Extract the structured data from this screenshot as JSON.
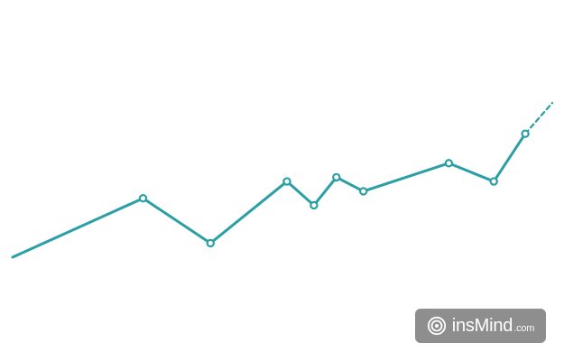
{
  "colors": {
    "background": "#ffffff",
    "line": "#2a9fa5",
    "marker_fill": "#ffffff",
    "badge_bg": "#8e8e8e",
    "badge_text": "#ffffff"
  },
  "chart_data": {
    "type": "line",
    "title": "",
    "xlabel": "",
    "ylabel": "",
    "grid": false,
    "legend": "none",
    "xlim": [
      0,
      12
    ],
    "ylim": [
      0,
      10
    ],
    "series": [
      {
        "style": "solid",
        "markers": true,
        "points": [
          {
            "x": 0.0,
            "y": 2.8,
            "marker": false
          },
          {
            "x": 2.9,
            "y": 4.9,
            "marker": true
          },
          {
            "x": 4.4,
            "y": 3.3,
            "marker": true
          },
          {
            "x": 6.1,
            "y": 5.5,
            "marker": true
          },
          {
            "x": 6.7,
            "y": 4.65,
            "marker": true
          },
          {
            "x": 7.2,
            "y": 5.65,
            "marker": true
          },
          {
            "x": 7.8,
            "y": 5.15,
            "marker": true
          },
          {
            "x": 9.7,
            "y": 6.15,
            "marker": true
          },
          {
            "x": 10.7,
            "y": 5.5,
            "marker": true
          },
          {
            "x": 11.4,
            "y": 7.2,
            "marker": true
          }
        ]
      },
      {
        "style": "dashed",
        "markers": false,
        "points": [
          {
            "x": 11.4,
            "y": 7.2
          },
          {
            "x": 12.0,
            "y": 8.3
          }
        ]
      }
    ]
  },
  "watermark": {
    "brand": "insMind",
    "suffix": ".com",
    "icon": "insmind-logo-icon"
  }
}
